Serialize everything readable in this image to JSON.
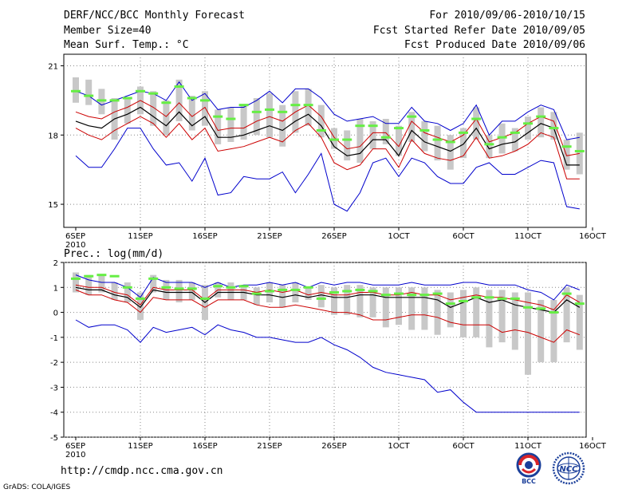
{
  "header": {
    "title": "DERF/NCC/BCC Monthly Forecast",
    "member_size": "Member Size=40",
    "variable": "Mean Surf. Temp.: °C",
    "forecast_period": "For 2010/09/06-2010/10/15",
    "started_refer": "Fcst Started Refer Date 2010/09/05",
    "produced": "Fcst Produced Date 2010/09/06"
  },
  "footer": {
    "url": "http://cmdp.ncc.cma.gov.cn",
    "credit": "GrADS: COLA/IGES",
    "logo_left_text": "BCC",
    "logo_right_text": "NCC"
  },
  "colors": {
    "envelope": "#0000cc",
    "spread": "#cc0000",
    "mean": "#000000",
    "ensemble_bar": "#c8c8c8",
    "observed": "#66ee44"
  },
  "chart_data": [
    {
      "type": "line",
      "title": "Mean Surf. Temp.: °C",
      "ylim": [
        14,
        21.5
      ],
      "yticks": [
        15,
        18,
        21
      ],
      "ytick_labels": [
        "15",
        "18",
        "21"
      ],
      "xtick_labels": [
        "6SEP",
        "11SEP",
        "16SEP",
        "21SEP",
        "26SEP",
        "1OCT",
        "6OCT",
        "11OCT",
        "16OCT"
      ],
      "xtick_year": "2010",
      "xtick_days": [
        0,
        5,
        10,
        15,
        20,
        25,
        30,
        35,
        40
      ],
      "grid": true,
      "days": [
        0,
        1,
        2,
        3,
        4,
        5,
        6,
        7,
        8,
        9,
        10,
        11,
        12,
        13,
        14,
        15,
        16,
        17,
        18,
        19,
        20,
        21,
        22,
        23,
        24,
        25,
        26,
        27,
        28,
        29,
        30,
        31,
        32,
        33,
        34,
        35,
        36,
        37,
        38,
        39
      ],
      "series": [
        {
          "name": "max",
          "color": "#0000cc",
          "values": [
            19.9,
            19.7,
            19.3,
            19.5,
            19.7,
            19.9,
            19.8,
            19.5,
            20.3,
            19.5,
            19.8,
            19.1,
            19.2,
            19.2,
            19.5,
            19.9,
            19.4,
            20.0,
            20.0,
            19.6,
            18.9,
            18.6,
            18.7,
            18.8,
            18.5,
            18.5,
            19.2,
            18.6,
            18.5,
            18.2,
            18.5,
            19.3,
            18.0,
            18.6,
            18.6,
            19.0,
            19.3,
            19.1,
            17.8,
            17.9
          ]
        },
        {
          "name": "upper",
          "color": "#cc0000",
          "values": [
            19.0,
            18.8,
            18.7,
            19.0,
            19.2,
            19.5,
            19.2,
            18.8,
            19.4,
            18.8,
            19.2,
            18.2,
            18.3,
            18.3,
            18.6,
            18.8,
            18.6,
            19.0,
            19.3,
            18.8,
            17.9,
            17.4,
            17.5,
            18.1,
            18.1,
            17.5,
            18.6,
            18.1,
            17.9,
            17.7,
            18.0,
            18.7,
            17.7,
            17.9,
            18.1,
            18.5,
            18.8,
            18.6,
            17.1,
            17.2
          ]
        },
        {
          "name": "mean",
          "color": "#000000",
          "values": [
            18.6,
            18.4,
            18.3,
            18.7,
            18.9,
            19.2,
            18.8,
            18.4,
            19.0,
            18.4,
            18.8,
            17.9,
            17.9,
            18.0,
            18.2,
            18.4,
            18.2,
            18.6,
            18.9,
            18.4,
            17.5,
            17.1,
            17.2,
            17.8,
            17.8,
            17.1,
            18.2,
            17.7,
            17.5,
            17.3,
            17.6,
            18.3,
            17.4,
            17.6,
            17.7,
            18.1,
            18.5,
            18.3,
            16.7,
            16.7
          ]
        },
        {
          "name": "lower",
          "color": "#cc0000",
          "values": [
            18.3,
            18.0,
            17.8,
            18.2,
            18.5,
            18.8,
            18.5,
            17.9,
            18.5,
            17.8,
            18.3,
            17.3,
            17.4,
            17.5,
            17.7,
            17.9,
            17.7,
            18.2,
            18.5,
            17.9,
            16.8,
            16.5,
            16.7,
            17.4,
            17.4,
            16.6,
            17.8,
            17.2,
            17.0,
            16.9,
            17.1,
            17.9,
            17.0,
            17.1,
            17.3,
            17.6,
            18.1,
            17.9,
            16.1,
            16.1
          ]
        },
        {
          "name": "min",
          "color": "#0000cc",
          "values": [
            17.1,
            16.6,
            16.6,
            17.4,
            18.3,
            18.3,
            17.4,
            16.7,
            16.8,
            16.0,
            17.0,
            15.4,
            15.5,
            16.2,
            16.1,
            16.1,
            16.4,
            15.5,
            16.3,
            17.2,
            15.0,
            14.7,
            15.5,
            16.8,
            17.0,
            16.2,
            17.0,
            16.8,
            16.2,
            15.9,
            15.9,
            16.6,
            16.8,
            16.3,
            16.3,
            16.6,
            16.9,
            16.8,
            14.9,
            14.8
          ]
        }
      ],
      "ensemble_bars": {
        "color": "#c8c8c8",
        "low": [
          19.4,
          19.3,
          18.9,
          17.8,
          18.5,
          18.9,
          18.4,
          18.0,
          18.6,
          18.2,
          18.4,
          17.6,
          17.7,
          17.8,
          18.0,
          17.9,
          17.5,
          18.1,
          18.4,
          17.9,
          17.4,
          16.9,
          16.8,
          17.4,
          17.6,
          17.1,
          17.7,
          17.3,
          16.9,
          16.5,
          17.0,
          17.8,
          17.0,
          17.2,
          17.3,
          17.8,
          17.9,
          17.8,
          16.5,
          16.3
        ],
        "high": [
          20.5,
          20.4,
          20.0,
          19.6,
          19.6,
          20.1,
          19.9,
          19.5,
          20.4,
          19.7,
          19.9,
          19.1,
          19.2,
          19.3,
          19.6,
          19.8,
          19.3,
          19.9,
          20.0,
          19.3,
          18.3,
          18.2,
          18.7,
          18.6,
          18.7,
          18.4,
          19.0,
          18.6,
          18.4,
          18.0,
          18.3,
          19.2,
          18.0,
          18.5,
          18.3,
          18.8,
          19.2,
          19.0,
          17.8,
          18.1
        ]
      },
      "observed": {
        "color": "#66ee44",
        "values": [
          19.9,
          19.7,
          19.5,
          19.5,
          19.6,
          19.9,
          19.8,
          19.4,
          20.1,
          19.6,
          19.5,
          18.8,
          18.7,
          19.3,
          19.0,
          19.1,
          19.0,
          19.3,
          19.3,
          18.2,
          17.8,
          17.8,
          18.4,
          18.4,
          17.9,
          18.3,
          18.8,
          18.2,
          17.8,
          17.7,
          18.1,
          18.7,
          17.6,
          17.9,
          18.1,
          18.5,
          18.8,
          18.3,
          17.5,
          17.3
        ]
      }
    },
    {
      "type": "line",
      "title": "Prec.: log(mm/d)",
      "ylim": [
        -5,
        2
      ],
      "yticks": [
        -5,
        -4,
        -3,
        -2,
        -1,
        0,
        1,
        2
      ],
      "ytick_labels": [
        "-5",
        "-4",
        "-3",
        "-2",
        "-1",
        "0",
        "1",
        "2"
      ],
      "xtick_labels": [
        "6SEP",
        "11SEP",
        "16SEP",
        "21SEP",
        "26SEP",
        "1OCT",
        "6OCT",
        "11OCT",
        "16OCT"
      ],
      "xtick_year": "2010",
      "xtick_days": [
        0,
        5,
        10,
        15,
        20,
        25,
        30,
        35,
        40
      ],
      "grid": true,
      "days": [
        0,
        1,
        2,
        3,
        4,
        5,
        6,
        7,
        8,
        9,
        10,
        11,
        12,
        13,
        14,
        15,
        16,
        17,
        18,
        19,
        20,
        21,
        22,
        23,
        24,
        25,
        26,
        27,
        28,
        29,
        30,
        31,
        32,
        33,
        34,
        35,
        36,
        37,
        38,
        39
      ],
      "series": [
        {
          "name": "max",
          "color": "#0000cc",
          "values": [
            1.5,
            1.3,
            1.2,
            1.2,
            1.0,
            0.6,
            1.4,
            1.2,
            1.2,
            1.2,
            1.0,
            1.2,
            1.0,
            1.1,
            1.1,
            1.2,
            1.1,
            1.2,
            1.0,
            1.2,
            1.1,
            1.2,
            1.2,
            1.1,
            1.1,
            1.1,
            1.2,
            1.1,
            1.1,
            1.1,
            1.2,
            1.2,
            1.1,
            1.1,
            1.1,
            0.9,
            0.8,
            0.5,
            1.1,
            0.9
          ]
        },
        {
          "name": "upper",
          "color": "#cc0000",
          "values": [
            1.1,
            1.0,
            1.0,
            0.8,
            0.7,
            0.3,
            1.0,
            0.9,
            0.9,
            0.9,
            0.5,
            0.9,
            0.9,
            0.9,
            0.8,
            0.9,
            0.8,
            0.9,
            0.7,
            0.8,
            0.7,
            0.7,
            0.8,
            0.8,
            0.7,
            0.7,
            0.8,
            0.7,
            0.7,
            0.5,
            0.6,
            0.7,
            0.6,
            0.6,
            0.5,
            0.4,
            0.3,
            0.1,
            0.7,
            0.4
          ]
        },
        {
          "name": "mean",
          "color": "#000000",
          "values": [
            1.0,
            0.9,
            0.9,
            0.7,
            0.6,
            0.2,
            0.9,
            0.8,
            0.8,
            0.8,
            0.4,
            0.8,
            0.8,
            0.8,
            0.7,
            0.7,
            0.6,
            0.7,
            0.6,
            0.7,
            0.6,
            0.6,
            0.7,
            0.7,
            0.6,
            0.6,
            0.6,
            0.6,
            0.5,
            0.2,
            0.4,
            0.6,
            0.4,
            0.5,
            0.3,
            0.2,
            0.1,
            0.0,
            0.5,
            0.2
          ]
        },
        {
          "name": "lower",
          "color": "#cc0000",
          "values": [
            0.9,
            0.7,
            0.7,
            0.5,
            0.4,
            0.0,
            0.6,
            0.5,
            0.5,
            0.5,
            0.2,
            0.5,
            0.5,
            0.5,
            0.3,
            0.2,
            0.2,
            0.3,
            0.2,
            0.1,
            0.0,
            0.0,
            -0.1,
            -0.3,
            -0.3,
            -0.2,
            -0.1,
            -0.1,
            -0.2,
            -0.4,
            -0.5,
            -0.5,
            -0.5,
            -0.8,
            -0.7,
            -0.8,
            -1.0,
            -1.2,
            -0.7,
            -0.9
          ]
        },
        {
          "name": "min",
          "color": "#0000cc",
          "values": [
            -0.3,
            -0.6,
            -0.5,
            -0.5,
            -0.7,
            -1.2,
            -0.6,
            -0.8,
            -0.7,
            -0.6,
            -0.9,
            -0.5,
            -0.7,
            -0.8,
            -1.0,
            -1.0,
            -1.1,
            -1.2,
            -1.2,
            -1.0,
            -1.3,
            -1.5,
            -1.8,
            -2.2,
            -2.4,
            -2.5,
            -2.6,
            -2.7,
            -3.2,
            -3.1,
            -3.6,
            -4.0,
            -4.0,
            -4.0,
            -4.0,
            -4.0,
            -4.0,
            -4.0,
            -4.0,
            -4.0
          ]
        }
      ],
      "ensemble_bars": {
        "color": "#c8c8c8",
        "low": [
          0.8,
          0.7,
          0.8,
          0.5,
          0.4,
          -0.3,
          0.8,
          0.5,
          0.4,
          0.5,
          -0.3,
          0.6,
          0.5,
          0.5,
          0.3,
          0.4,
          0.2,
          0.4,
          0.5,
          0.2,
          -0.1,
          -0.1,
          -0.2,
          -0.2,
          -0.6,
          -0.5,
          -0.7,
          -0.7,
          -0.9,
          -0.6,
          -1.0,
          -1.0,
          -1.4,
          -1.2,
          -1.5,
          -2.5,
          -2.0,
          -2.0,
          -1.2,
          -1.5
        ],
        "high": [
          1.6,
          1.5,
          1.5,
          1.2,
          1.2,
          0.8,
          1.5,
          1.3,
          1.3,
          1.2,
          1.1,
          1.2,
          1.2,
          1.1,
          1.0,
          1.2,
          1.1,
          1.2,
          1.0,
          1.1,
          1.0,
          1.1,
          1.1,
          1.0,
          1.0,
          1.0,
          1.0,
          1.0,
          0.9,
          0.8,
          0.9,
          1.0,
          0.9,
          0.9,
          0.8,
          0.8,
          0.5,
          0.5,
          1.0,
          0.7
        ]
      },
      "observed": {
        "color": "#66ee44",
        "values": [
          1.35,
          1.45,
          1.5,
          1.45,
          1.0,
          0.55,
          1.35,
          1.0,
          0.95,
          0.95,
          0.55,
          1.05,
          1.0,
          1.05,
          0.75,
          0.85,
          0.9,
          0.9,
          1.0,
          0.55,
          0.8,
          0.85,
          0.9,
          0.85,
          0.7,
          0.75,
          0.7,
          0.7,
          0.75,
          0.35,
          0.45,
          0.6,
          0.6,
          0.55,
          0.55,
          0.2,
          0.15,
          0.0,
          0.75,
          0.35
        ]
      }
    }
  ]
}
